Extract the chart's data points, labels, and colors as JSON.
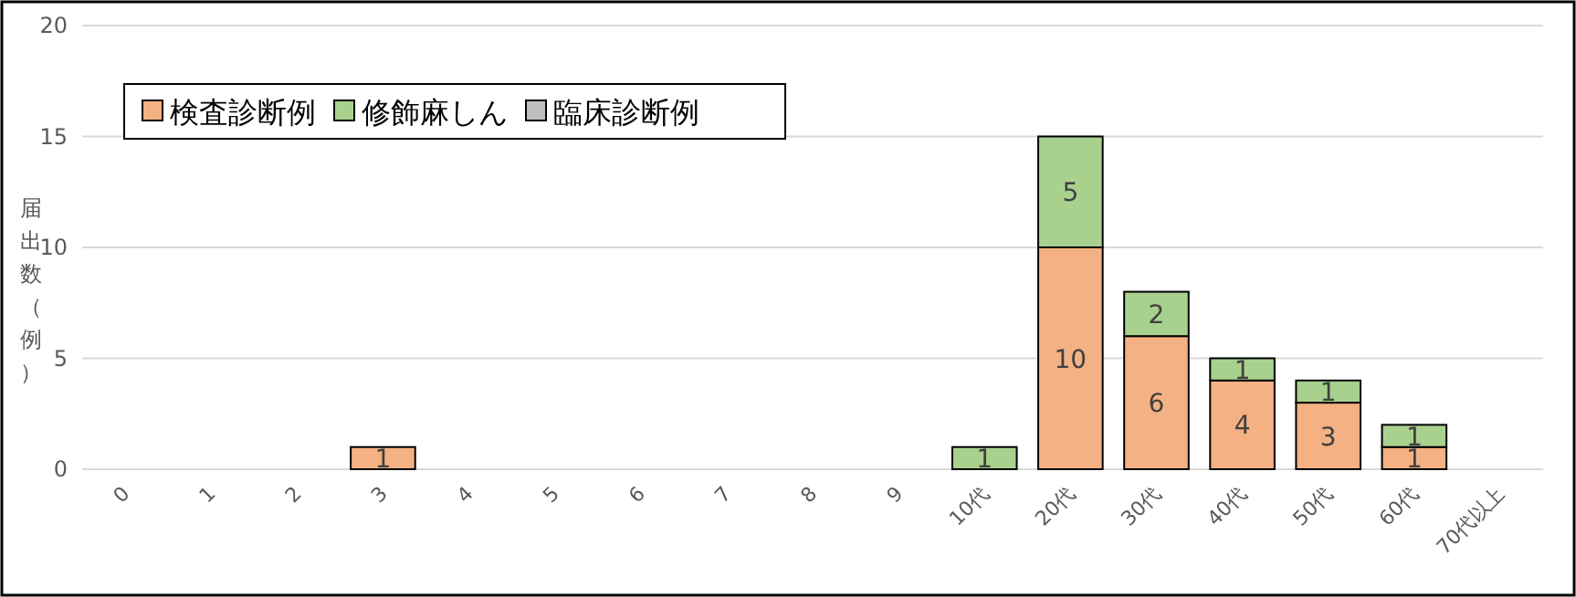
{
  "chart_data": {
    "type": "bar",
    "stacked": true,
    "ylabel": "届出数（例）",
    "categories": [
      "0",
      "1",
      "2",
      "3",
      "4",
      "5",
      "6",
      "7",
      "8",
      "9",
      "10代",
      "20代",
      "30代",
      "40代",
      "50代",
      "60代",
      "70代以上"
    ],
    "series": [
      {
        "name": "検査診断例",
        "color": "#f4b183",
        "values": [
          0,
          0,
          0,
          1,
          0,
          0,
          0,
          0,
          0,
          0,
          0,
          10,
          6,
          4,
          3,
          1,
          0
        ],
        "value_labels": [
          null,
          null,
          null,
          "1",
          null,
          null,
          null,
          null,
          null,
          null,
          null,
          "10",
          "6",
          "4",
          "3",
          "1",
          null
        ]
      },
      {
        "name": "修飾麻しん",
        "color": "#a9d18e",
        "values": [
          0,
          0,
          0,
          0,
          0,
          0,
          0,
          0,
          0,
          0,
          1,
          5,
          2,
          1,
          1,
          1,
          0
        ],
        "value_labels": [
          null,
          null,
          null,
          null,
          null,
          null,
          null,
          null,
          null,
          null,
          "1",
          "5",
          "2",
          "1",
          "1",
          "1",
          null
        ]
      },
      {
        "name": "臨床診断例",
        "color": "#bfbfbf",
        "values": [
          0,
          0,
          0,
          0,
          0,
          0,
          0,
          0,
          0,
          0,
          0,
          0,
          0,
          0,
          0,
          0,
          0
        ]
      }
    ],
    "ylim": [
      0,
      20
    ],
    "yticks": [
      0,
      5,
      10,
      15,
      20
    ],
    "grid": "y",
    "legend": "top left"
  }
}
